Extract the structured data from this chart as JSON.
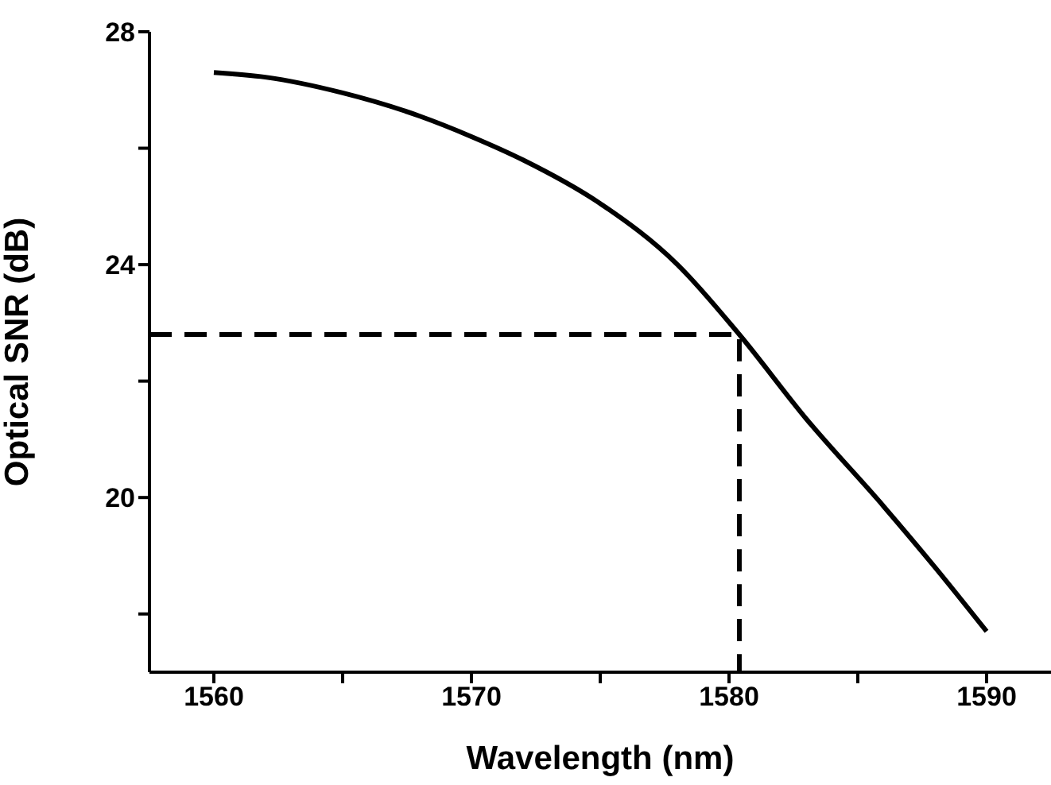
{
  "chart_data": {
    "type": "line",
    "xlabel": "Wavelength (nm)",
    "ylabel": "Optical SNR (dB)",
    "xlim": [
      1557.5,
      1592.5
    ],
    "ylim": [
      17,
      28
    ],
    "xticks": [
      1560,
      {
        "value": 1565,
        "label": null
      },
      1570,
      {
        "value": 1575,
        "label": null
      },
      1580,
      {
        "value": 1585,
        "label": null
      },
      1590
    ],
    "yticks": [
      {
        "value": 18,
        "label": null
      },
      20,
      {
        "value": 22,
        "label": null
      },
      24,
      {
        "value": 26,
        "label": null
      },
      28
    ],
    "series": [
      {
        "color": "#000000",
        "line_style": "solid",
        "x": [
          1560,
          1562,
          1565,
          1568,
          1570,
          1572,
          1575,
          1578,
          1580.4,
          1583,
          1586,
          1588,
          1590
        ],
        "values": [
          27.3,
          27.22,
          26.95,
          26.55,
          26.2,
          25.8,
          25.05,
          24.0,
          22.8,
          21.35,
          19.85,
          18.8,
          17.7
        ]
      },
      {
        "color": "#000000",
        "line_style": "dashed",
        "x": [
          1557.5,
          1580.4,
          1580.4
        ],
        "values": [
          22.8,
          22.8,
          17
        ]
      }
    ]
  }
}
